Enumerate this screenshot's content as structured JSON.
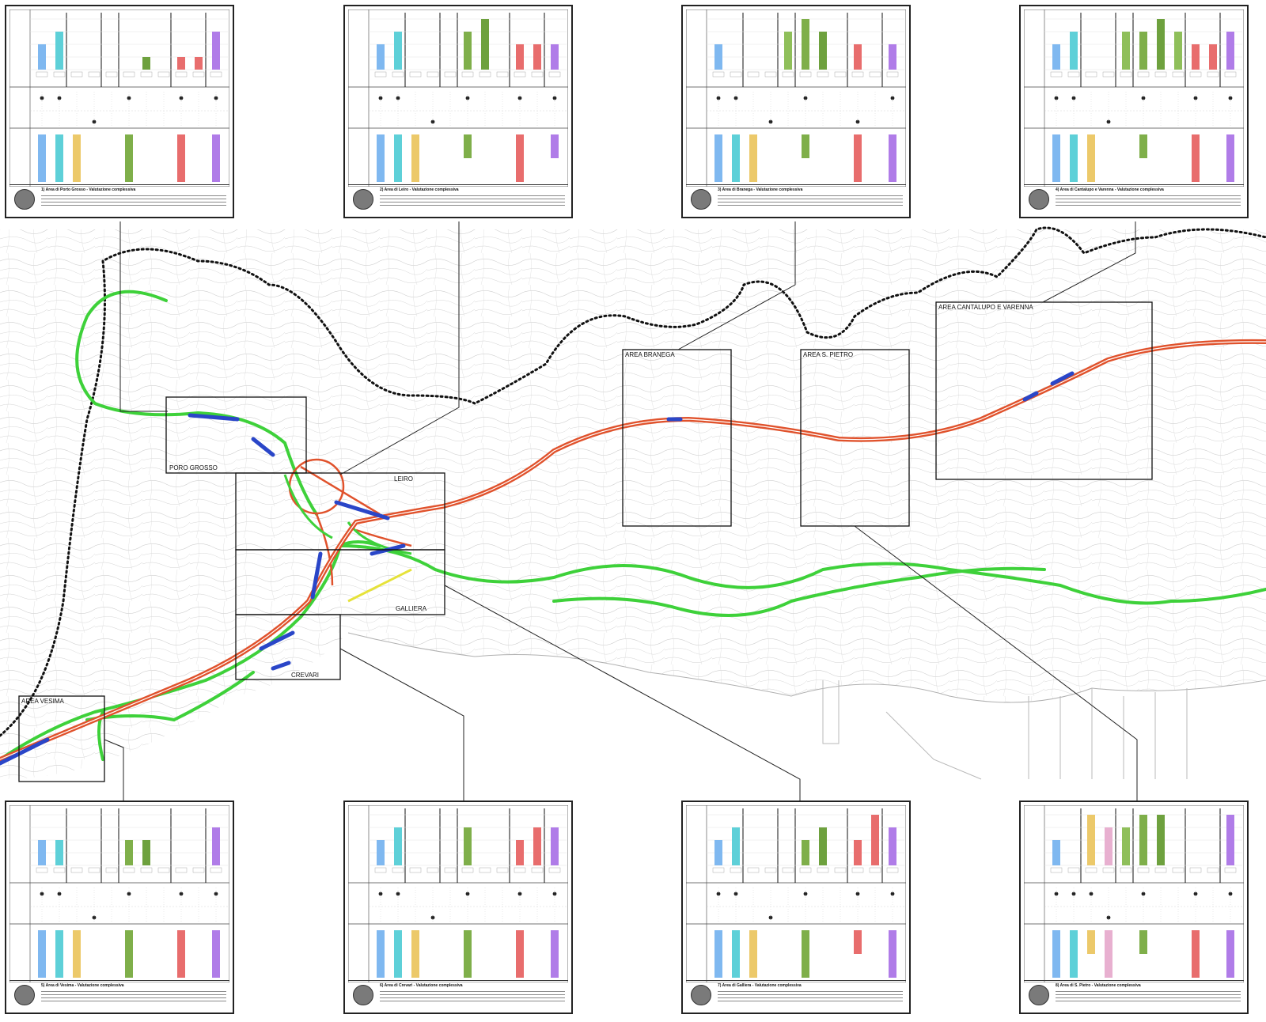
{
  "map": {
    "areas": [
      {
        "id": "porto-grosso",
        "label": "PORO GROSSO"
      },
      {
        "id": "leiro",
        "label": "LEIRO"
      },
      {
        "id": "galliera",
        "label": "GALLIERA"
      },
      {
        "id": "crevari",
        "label": "CREVARI"
      },
      {
        "id": "vesima",
        "label": "AREA VESIMA"
      },
      {
        "id": "branega",
        "label": "AREA BRANEGA"
      },
      {
        "id": "spietro",
        "label": "AREA S. PIETRO"
      },
      {
        "id": "cantalupo",
        "label": "AREA CANTALUPO E VARENNA"
      }
    ],
    "colors": {
      "new_route": "#e0522c",
      "existing_route": "#3ed13a",
      "tunnel_segment": "#2a46c8",
      "yellow_link": "#e6e23a",
      "boundary": "#111111",
      "terrain_lines": "#c9c9c9",
      "sea_outline": "#b0b0b0"
    }
  },
  "panels": [
    {
      "name": "panel-porto-grosso",
      "title": "1) Area di Porto Grosso - Valutazione complessiva",
      "bars_top": [
        2,
        3,
        0,
        0,
        0,
        0,
        1,
        0,
        1,
        1,
        3
      ],
      "marks": [
        1,
        1,
        0,
        2,
        0,
        1,
        0,
        0,
        1,
        0,
        1
      ],
      "bars_bottom": [
        1,
        1,
        1,
        0,
        0,
        1,
        0,
        0,
        1,
        0,
        1
      ]
    },
    {
      "name": "panel-leiro",
      "title": "2) Area di Leiro - Valutazione complessiva",
      "bars_top": [
        2,
        3,
        0,
        0,
        0,
        3,
        4,
        0,
        2,
        2,
        2
      ],
      "marks": [
        1,
        1,
        0,
        2,
        0,
        1,
        0,
        0,
        1,
        0,
        1
      ],
      "bars_bottom": [
        1,
        1,
        1,
        0,
        0,
        0.5,
        0,
        0,
        1,
        0,
        0.5
      ]
    },
    {
      "name": "panel-branega",
      "title": "3) Area di Branega - Valutazione complessiva",
      "bars_top": [
        2,
        0,
        0,
        0,
        3,
        4,
        3,
        0,
        2,
        0,
        2
      ],
      "marks": [
        1,
        1,
        0,
        2,
        0,
        1,
        0,
        0,
        2,
        0,
        1
      ],
      "bars_bottom": [
        1,
        1,
        1,
        0,
        0,
        0.5,
        0,
        0,
        1,
        0,
        1
      ]
    },
    {
      "name": "panel-cantalupo",
      "title": "4) Area di Cantalupo e Varenna - Valutazione complessiva",
      "bars_top": [
        2,
        3,
        0,
        0,
        3,
        3,
        4,
        3,
        2,
        2,
        3
      ],
      "marks": [
        1,
        1,
        0,
        2,
        0,
        1,
        0,
        0,
        1,
        0,
        1
      ],
      "bars_bottom": [
        1,
        1,
        1,
        0,
        0,
        0.5,
        0,
        0,
        1,
        0,
        1
      ]
    },
    {
      "name": "panel-vesima",
      "title": "5) Area di Vesima - Valutazione complessiva",
      "bars_top": [
        2,
        2,
        0,
        0,
        0,
        2,
        2,
        0,
        0,
        0,
        3
      ],
      "marks": [
        1,
        1,
        0,
        2,
        0,
        1,
        0,
        0,
        1,
        0,
        1
      ],
      "bars_bottom": [
        1,
        1,
        1,
        0,
        0,
        1,
        0,
        0,
        1,
        0,
        1
      ]
    },
    {
      "name": "panel-crevari",
      "title": "6) Area di Crevari - Valutazione complessiva",
      "bars_top": [
        2,
        3,
        0,
        0,
        0,
        3,
        0,
        0,
        2,
        3,
        3
      ],
      "marks": [
        1,
        1,
        0,
        2,
        0,
        1,
        0,
        0,
        1,
        0,
        1
      ],
      "bars_bottom": [
        1,
        1,
        1,
        0,
        0,
        1,
        0,
        0,
        1,
        0,
        1
      ]
    },
    {
      "name": "panel-galliera",
      "title": "7) Area di Galliera - Valutazione complessiva",
      "bars_top": [
        2,
        3,
        0,
        0,
        0,
        2,
        3,
        0,
        2,
        4,
        3
      ],
      "marks": [
        1,
        1,
        0,
        2,
        0,
        1,
        0,
        0,
        1,
        0,
        1
      ],
      "bars_bottom": [
        1,
        1,
        1,
        0,
        0,
        1,
        0,
        0,
        0.5,
        0,
        1
      ]
    },
    {
      "name": "panel-spietro",
      "title": "8) Area di S. Pietro - Valutazione complessiva",
      "bars_top": [
        2,
        0,
        4,
        3,
        3,
        4,
        4,
        0,
        0,
        0,
        4
      ],
      "marks": [
        1,
        1,
        1,
        2,
        0,
        1,
        0,
        0,
        1,
        0,
        1
      ],
      "bars_bottom": [
        1,
        1,
        0.5,
        1,
        0,
        0.5,
        0,
        0,
        1,
        0,
        1
      ]
    }
  ],
  "series_colors": [
    "#7fb8f0",
    "#5ed0d8",
    "#ecc96a",
    "#e8b0d0",
    "#8fbf5a",
    "#7faf4a",
    "#6ea13e",
    "#8fbf5a",
    "#e86d6d",
    "#e86d6d",
    "#b07ce8"
  ]
}
